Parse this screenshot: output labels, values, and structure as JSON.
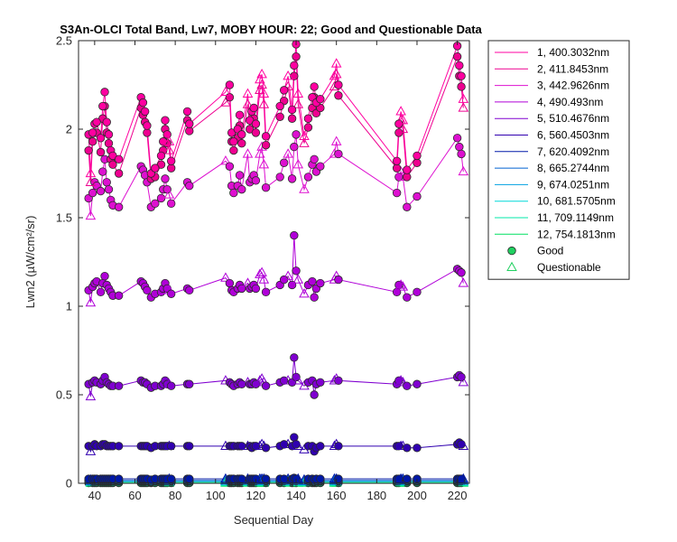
{
  "chart_data": {
    "type": "line",
    "title": "S3An-OLCI Total Band, Lw7, MOBY HOUR: 22;  Good and Questionable Data",
    "xlabel": "Sequential Day",
    "ylabel": "Lwn2 (µW/cm²/sr)",
    "xlim": [
      32,
      226
    ],
    "ylim": [
      0,
      2.5
    ],
    "xticks": [
      40,
      60,
      80,
      100,
      120,
      140,
      160,
      180,
      200,
      220
    ],
    "yticks": [
      0,
      0.5,
      1,
      1.5,
      2,
      2.5
    ],
    "ytick_labels": [
      "0",
      "0.5",
      "1",
      "1.5",
      "2",
      "2.5"
    ],
    "grid": false,
    "legend_position": "outside-right",
    "x": [
      37,
      38,
      39,
      40,
      41,
      43,
      44,
      45,
      46,
      47,
      48,
      49,
      52,
      63,
      64,
      65,
      66,
      68,
      70,
      73,
      74,
      75,
      76,
      77,
      78,
      86,
      87,
      105,
      107,
      108,
      109,
      111,
      112,
      113,
      116,
      117,
      118,
      119,
      120,
      122,
      123,
      124,
      125,
      132,
      134,
      136,
      138,
      139,
      140,
      141,
      144,
      146,
      148,
      149,
      150,
      152,
      159,
      160,
      161,
      190,
      191,
      192,
      193,
      195,
      200,
      220,
      221,
      222,
      223
    ],
    "series": [
      {
        "name": "1, 400.3032nm",
        "color": "#ff00a0",
        "values": [
          1.97,
          1.75,
          1.98,
          2.03,
          2.04,
          1.95,
          2.13,
          2.21,
          2.04,
          1.97,
          1.88,
          1.85,
          1.83,
          2.18,
          2.15,
          2.1,
          2.02,
          1.75,
          1.78,
          1.85,
          1.93,
          2.05,
          1.97,
          1.93,
          1.82,
          2.1,
          2.03,
          2.21,
          2.25,
          1.98,
          1.93,
          2.0,
          2.08,
          1.97,
          2.2,
          2.05,
          2.1,
          2.12,
          2.03,
          2.28,
          2.31,
          2.2,
          1.96,
          2.13,
          2.22,
          2.3,
          2.11,
          2.36,
          2.48,
          2.2,
          1.96,
          2.06,
          2.18,
          2.24,
          2.15,
          2.17,
          2.3,
          2.37,
          2.25,
          1.82,
          2.03,
          2.1,
          2.05,
          1.77,
          1.85,
          2.47,
          2.36,
          2.3,
          2.17
        ]
      },
      {
        "name": "2, 411.8453nm",
        "color": "#ee0090",
        "values": [
          1.88,
          1.7,
          1.93,
          1.98,
          1.98,
          1.87,
          2.06,
          2.13,
          1.98,
          1.92,
          1.83,
          1.8,
          1.75,
          2.12,
          2.08,
          2.04,
          1.98,
          1.72,
          1.73,
          1.8,
          1.88,
          2.0,
          1.92,
          1.88,
          1.78,
          2.05,
          1.99,
          2.15,
          2.18,
          1.93,
          1.88,
          1.95,
          2.02,
          1.92,
          2.14,
          2.0,
          2.05,
          2.06,
          1.98,
          2.22,
          2.25,
          2.14,
          1.91,
          2.07,
          2.16,
          2.24,
          2.06,
          2.3,
          2.41,
          2.14,
          1.92,
          2.01,
          2.12,
          2.18,
          2.09,
          2.12,
          2.24,
          2.31,
          2.19,
          1.78,
          1.98,
          2.05,
          2.0,
          1.73,
          1.81,
          2.41,
          2.3,
          2.24,
          2.12
        ]
      },
      {
        "name": "3, 442.9626nm",
        "color": "#dd10d0",
        "values": [
          1.61,
          1.51,
          1.64,
          1.7,
          1.68,
          1.65,
          1.76,
          1.83,
          1.7,
          1.66,
          1.6,
          1.57,
          1.56,
          1.79,
          1.77,
          1.74,
          1.7,
          1.56,
          1.58,
          1.61,
          1.66,
          1.72,
          1.66,
          1.63,
          1.58,
          1.7,
          1.68,
          1.82,
          1.79,
          1.68,
          1.64,
          1.68,
          1.74,
          1.66,
          1.86,
          1.7,
          1.72,
          1.74,
          1.71,
          1.86,
          1.9,
          1.8,
          1.67,
          1.73,
          1.81,
          1.86,
          1.72,
          1.9,
          1.97,
          1.8,
          1.66,
          1.73,
          1.8,
          1.83,
          1.76,
          1.79,
          1.86,
          1.93,
          1.86,
          1.64,
          1.73,
          1.76,
          1.73,
          1.56,
          1.62,
          1.95,
          1.9,
          1.86,
          1.76
        ]
      },
      {
        "name": "4,  490.493nm",
        "color": "#b000d8",
        "values": [
          1.09,
          1.02,
          1.11,
          1.13,
          1.14,
          1.08,
          1.13,
          1.17,
          1.12,
          1.1,
          1.08,
          1.06,
          1.06,
          1.14,
          1.13,
          1.11,
          1.09,
          1.05,
          1.07,
          1.08,
          1.1,
          1.13,
          1.1,
          1.09,
          1.07,
          1.1,
          1.09,
          1.16,
          1.13,
          1.09,
          1.08,
          1.1,
          1.12,
          1.1,
          1.13,
          1.1,
          1.11,
          1.12,
          1.1,
          1.18,
          1.19,
          1.15,
          1.08,
          1.12,
          1.15,
          1.17,
          1.12,
          1.4,
          1.2,
          1.15,
          1.07,
          1.12,
          1.14,
          1.05,
          1.1,
          1.13,
          1.15,
          1.17,
          1.15,
          1.08,
          1.12,
          1.12,
          1.11,
          1.05,
          1.08,
          1.21,
          1.2,
          1.19,
          1.13
        ]
      },
      {
        "name": "5, 510.4676nm",
        "color": "#8000d0",
        "values": [
          0.56,
          0.49,
          0.57,
          0.58,
          0.57,
          0.56,
          0.58,
          0.6,
          0.57,
          0.56,
          0.55,
          0.55,
          0.55,
          0.58,
          0.57,
          0.57,
          0.56,
          0.54,
          0.55,
          0.55,
          0.56,
          0.58,
          0.56,
          0.56,
          0.55,
          0.56,
          0.56,
          0.58,
          0.57,
          0.56,
          0.55,
          0.56,
          0.57,
          0.56,
          0.57,
          0.56,
          0.56,
          0.57,
          0.56,
          0.58,
          0.59,
          0.57,
          0.55,
          0.57,
          0.58,
          0.58,
          0.57,
          0.71,
          0.6,
          0.58,
          0.55,
          0.57,
          0.58,
          0.5,
          0.56,
          0.57,
          0.58,
          0.59,
          0.58,
          0.56,
          0.58,
          0.58,
          0.57,
          0.55,
          0.56,
          0.6,
          0.61,
          0.6,
          0.57
        ]
      },
      {
        "name": "6, 560.4503nm",
        "color": "#3000b0",
        "values": [
          0.21,
          0.18,
          0.21,
          0.22,
          0.21,
          0.21,
          0.22,
          0.22,
          0.21,
          0.21,
          0.21,
          0.21,
          0.21,
          0.21,
          0.21,
          0.21,
          0.21,
          0.2,
          0.21,
          0.21,
          0.21,
          0.21,
          0.21,
          0.21,
          0.21,
          0.21,
          0.21,
          0.21,
          0.21,
          0.21,
          0.21,
          0.21,
          0.21,
          0.21,
          0.21,
          0.21,
          0.2,
          0.21,
          0.21,
          0.21,
          0.22,
          0.21,
          0.2,
          0.21,
          0.22,
          0.22,
          0.21,
          0.26,
          0.22,
          0.21,
          0.19,
          0.21,
          0.21,
          0.18,
          0.2,
          0.21,
          0.21,
          0.22,
          0.21,
          0.21,
          0.21,
          0.21,
          0.21,
          0.2,
          0.2,
          0.22,
          0.23,
          0.22,
          0.21
        ]
      },
      {
        "name": "7, 620.4092nm",
        "color": "#0018a8",
        "values": [
          0.025,
          0.02,
          0.025,
          0.025,
          0.025,
          0.025,
          0.025,
          0.025,
          0.025,
          0.025,
          0.025,
          0.025,
          0.025,
          0.025,
          0.025,
          0.025,
          0.025,
          0.02,
          0.025,
          0.025,
          0.025,
          0.025,
          0.025,
          0.025,
          0.025,
          0.025,
          0.025,
          0.025,
          0.025,
          0.025,
          0.025,
          0.025,
          0.025,
          0.025,
          0.025,
          0.025,
          0.025,
          0.025,
          0.025,
          0.025,
          0.025,
          0.025,
          0.025,
          0.025,
          0.025,
          0.025,
          0.025,
          0.03,
          0.025,
          0.025,
          0.02,
          0.025,
          0.025,
          0.02,
          0.025,
          0.025,
          0.025,
          0.025,
          0.025,
          0.025,
          0.025,
          0.025,
          0.025,
          0.025,
          0.025,
          0.025,
          0.025,
          0.025,
          0.025
        ]
      },
      {
        "name": "8, 665.2744nm",
        "color": "#0060d0",
        "values": [
          0.015,
          0.012,
          0.015,
          0.015,
          0.015,
          0.015,
          0.015,
          0.015,
          0.015,
          0.015,
          0.015,
          0.015,
          0.015,
          0.015,
          0.015,
          0.015,
          0.015,
          0.012,
          0.015,
          0.015,
          0.015,
          0.015,
          0.015,
          0.015,
          0.015,
          0.015,
          0.015,
          0.015,
          0.015,
          0.015,
          0.015,
          0.015,
          0.015,
          0.015,
          0.015,
          0.015,
          0.015,
          0.015,
          0.015,
          0.015,
          0.015,
          0.015,
          0.015,
          0.015,
          0.015,
          0.015,
          0.015,
          0.018,
          0.015,
          0.015,
          0.012,
          0.015,
          0.015,
          0.012,
          0.015,
          0.015,
          0.015,
          0.015,
          0.015,
          0.015,
          0.015,
          0.015,
          0.015,
          0.015,
          0.015,
          0.015,
          0.015,
          0.015,
          0.015
        ]
      },
      {
        "name": "9, 674.0251nm",
        "color": "#00a0e0",
        "values": [
          0.013,
          0.01,
          0.013,
          0.013,
          0.013,
          0.013,
          0.013,
          0.013,
          0.013,
          0.013,
          0.013,
          0.013,
          0.013,
          0.013,
          0.013,
          0.013,
          0.013,
          0.01,
          0.013,
          0.013,
          0.013,
          0.013,
          0.013,
          0.013,
          0.013,
          0.013,
          0.013,
          0.013,
          0.013,
          0.013,
          0.013,
          0.013,
          0.013,
          0.013,
          0.013,
          0.013,
          0.013,
          0.013,
          0.013,
          0.013,
          0.013,
          0.013,
          0.013,
          0.013,
          0.013,
          0.013,
          0.013,
          0.016,
          0.013,
          0.013,
          0.01,
          0.013,
          0.013,
          0.01,
          0.013,
          0.013,
          0.013,
          0.013,
          0.013,
          0.013,
          0.013,
          0.013,
          0.013,
          0.013,
          0.013,
          0.013,
          0.013,
          0.013,
          0.013
        ]
      },
      {
        "name": "10, 681.5705nm",
        "color": "#00d8d8",
        "values": [
          0.012,
          0.01,
          0.012,
          0.012,
          0.012,
          0.012,
          0.012,
          0.012,
          0.012,
          0.012,
          0.012,
          0.012,
          0.012,
          0.012,
          0.012,
          0.012,
          0.012,
          0.01,
          0.012,
          0.012,
          0.012,
          0.012,
          0.012,
          0.012,
          0.012,
          0.012,
          0.012,
          0.012,
          0.012,
          0.012,
          0.012,
          0.012,
          0.012,
          0.012,
          0.012,
          0.012,
          0.012,
          0.012,
          0.012,
          0.012,
          0.012,
          0.012,
          0.012,
          0.012,
          0.012,
          0.012,
          0.012,
          0.015,
          0.012,
          0.012,
          0.01,
          0.012,
          0.012,
          0.01,
          0.012,
          0.012,
          0.012,
          0.012,
          0.012,
          0.012,
          0.012,
          0.012,
          0.012,
          0.012,
          0.012,
          0.012,
          0.012,
          0.012,
          0.012
        ]
      },
      {
        "name": "11, 709.1149nm",
        "color": "#00e8a8",
        "values": [
          0.006,
          0.005,
          0.006,
          0.006,
          0.006,
          0.006,
          0.006,
          0.006,
          0.006,
          0.006,
          0.006,
          0.006,
          0.006,
          0.006,
          0.006,
          0.006,
          0.006,
          0.005,
          0.006,
          0.006,
          0.006,
          0.006,
          0.006,
          0.006,
          0.006,
          0.006,
          0.006,
          0.006,
          0.006,
          0.006,
          0.006,
          0.006,
          0.006,
          0.006,
          0.006,
          0.006,
          0.006,
          0.006,
          0.006,
          0.006,
          0.006,
          0.006,
          0.006,
          0.006,
          0.006,
          0.006,
          0.006,
          0.008,
          0.006,
          0.006,
          0.005,
          0.006,
          0.006,
          0.005,
          0.006,
          0.006,
          0.006,
          0.006,
          0.006,
          0.006,
          0.006,
          0.006,
          0.006,
          0.006,
          0.006,
          0.006,
          0.006,
          0.006,
          0.006
        ]
      },
      {
        "name": "12, 754.1813nm",
        "color": "#00e060",
        "values": [
          0.002,
          0.002,
          0.002,
          0.002,
          0.002,
          0.002,
          0.002,
          0.002,
          0.002,
          0.002,
          0.002,
          0.002,
          0.002,
          0.002,
          0.002,
          0.002,
          0.002,
          0.002,
          0.002,
          0.002,
          0.002,
          0.002,
          0.002,
          0.002,
          0.002,
          0.002,
          0.002,
          0.002,
          0.002,
          0.002,
          0.002,
          0.002,
          0.002,
          0.002,
          0.002,
          0.002,
          0.002,
          0.002,
          0.002,
          0.002,
          0.002,
          0.002,
          0.002,
          0.002,
          0.002,
          0.002,
          0.002,
          0.003,
          0.002,
          0.002,
          0.002,
          0.002,
          0.002,
          0.002,
          0.002,
          0.002,
          0.002,
          0.002,
          0.002,
          0.002,
          0.002,
          0.002,
          0.002,
          0.002,
          0.002,
          0.002,
          0.002,
          0.002,
          0.002
        ]
      }
    ],
    "quality": [
      "G",
      "Q",
      "G",
      "G",
      "G",
      "G",
      "G",
      "G",
      "G",
      "G",
      "G",
      "G",
      "G",
      "G",
      "G",
      "G",
      "G",
      "G",
      "G",
      "G",
      "G",
      "G",
      "G",
      "Q",
      "G",
      "G",
      "G",
      "Q",
      "G",
      "G",
      "G",
      "G",
      "G",
      "G",
      "Q",
      "G",
      "G",
      "G",
      "G",
      "Q",
      "Q",
      "Q",
      "G",
      "G",
      "G",
      "Q",
      "G",
      "G",
      "G",
      "Q",
      "Q",
      "G",
      "G",
      "G",
      "G",
      "G",
      "Q",
      "Q",
      "G",
      "G",
      "G",
      "Q",
      "Q",
      "G",
      "G",
      "G",
      "G",
      "G",
      "Q"
    ],
    "legend_markers": [
      {
        "label": "Good",
        "marker": "circle",
        "color": "#20d060"
      },
      {
        "label": "Questionable",
        "marker": "triangle",
        "color": "#20d060"
      }
    ]
  }
}
